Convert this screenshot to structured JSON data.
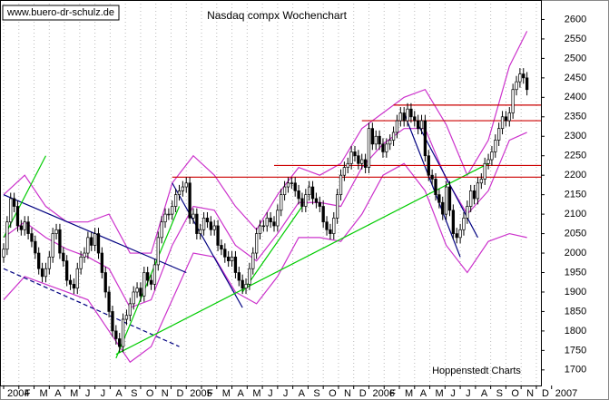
{
  "chart_data": {
    "type": "candlestick",
    "title": "Nasdaq compx Wochenchart",
    "watermark": "www.buero-dr-schulz.de",
    "source": "Hoppenstedt Charts",
    "x_labels": [
      "2004",
      "F",
      "M",
      "A",
      "M",
      "J",
      "J",
      "A",
      "S",
      "O",
      "N",
      "D",
      "2005",
      "F",
      "M",
      "A",
      "M",
      "J",
      "J",
      "A",
      "S",
      "O",
      "N",
      "D",
      "2006",
      "F",
      "M",
      "A",
      "M",
      "J",
      "J",
      "A",
      "S",
      "O",
      "N",
      "D",
      "2007"
    ],
    "ylim": [
      1660,
      2650
    ],
    "yticks": [
      1700,
      1750,
      1800,
      1850,
      1900,
      1950,
      2000,
      2050,
      2100,
      2150,
      2200,
      2250,
      2300,
      2350,
      2400,
      2450,
      2500,
      2550,
      2600
    ],
    "up_color": "#ffffff",
    "down_color": "#000000",
    "open": [
      1990,
      2010,
      2080,
      2140,
      2120,
      2070,
      2060,
      2080,
      2050,
      2030,
      2000,
      1960,
      1940,
      1960,
      1990,
      2050,
      2060,
      2000,
      1980,
      1930,
      1920,
      1910,
      1960,
      1990,
      2000,
      2040,
      2020,
      2050,
      2000,
      1950,
      1900,
      1850,
      1800,
      1780,
      1760,
      1830,
      1840,
      1870,
      1900,
      1910,
      1890,
      1950,
      1930,
      1920,
      1970,
      2040,
      2080,
      2100,
      2100,
      2120,
      2150,
      2160,
      2170,
      2180,
      2090,
      2100,
      2050,
      2060,
      2090,
      2080,
      2060,
      2070,
      2020,
      2010,
      1990,
      1980,
      1990,
      1950,
      1930,
      1910,
      1920,
      1960,
      2000,
      2050,
      2070,
      2070,
      2090,
      2080,
      2070,
      2110,
      2150,
      2170,
      2180,
      2180,
      2160,
      2140,
      2120,
      2150,
      2170,
      2140,
      2130,
      2120,
      2080,
      2060,
      2050,
      2090,
      2150,
      2200,
      2220,
      2230,
      2260,
      2250,
      2230,
      2240,
      2220,
      2320,
      2280,
      2300,
      2280,
      2260,
      2280,
      2290,
      2310,
      2340,
      2360,
      2340,
      2370,
      2350,
      2340,
      2320,
      2340,
      2250,
      2200,
      2190,
      2150,
      2130,
      2100,
      2170,
      2110,
      2050,
      2040,
      2060,
      2090,
      2120,
      2160,
      2140,
      2180,
      2190,
      2230,
      2240,
      2260,
      2290,
      2320,
      2350,
      2340,
      2360,
      2420,
      2440,
      2460,
      2450
    ],
    "high": [
      2025,
      2095,
      2155,
      2155,
      2135,
      2085,
      2095,
      2095,
      2065,
      2045,
      2015,
      1975,
      1975,
      2005,
      2065,
      2075,
      2075,
      2015,
      1995,
      1945,
      1935,
      1975,
      2005,
      2015,
      2055,
      2055,
      2065,
      2065,
      2015,
      1965,
      1915,
      1865,
      1815,
      1795,
      1845,
      1855,
      1885,
      1915,
      1925,
      1925,
      1965,
      1965,
      1945,
      1985,
      2055,
      2095,
      2115,
      2115,
      2135,
      2165,
      2175,
      2185,
      2195,
      2195,
      2115,
      2115,
      2075,
      2105,
      2105,
      2095,
      2085,
      2085,
      2035,
      2025,
      2005,
      2005,
      2005,
      1965,
      1945,
      1935,
      1975,
      2015,
      2065,
      2085,
      2085,
      2105,
      2105,
      2095,
      2125,
      2165,
      2185,
      2195,
      2195,
      2195,
      2175,
      2155,
      2165,
      2185,
      2185,
      2155,
      2145,
      2135,
      2095,
      2075,
      2105,
      2165,
      2215,
      2235,
      2245,
      2275,
      2275,
      2265,
      2255,
      2255,
      2335,
      2335,
      2315,
      2315,
      2295,
      2295,
      2305,
      2325,
      2355,
      2375,
      2375,
      2385,
      2385,
      2365,
      2355,
      2355,
      2355,
      2265,
      2215,
      2205,
      2165,
      2145,
      2185,
      2185,
      2125,
      2065,
      2075,
      2105,
      2135,
      2175,
      2175,
      2195,
      2205,
      2245,
      2255,
      2275,
      2305,
      2335,
      2365,
      2365,
      2375,
      2435,
      2455,
      2475,
      2475,
      2465
    ],
    "low": [
      1975,
      1995,
      2065,
      2105,
      2055,
      2045,
      2045,
      2035,
      2015,
      1985,
      1945,
      1925,
      1925,
      1945,
      1975,
      2035,
      1985,
      1965,
      1915,
      1905,
      1895,
      1895,
      1945,
      1975,
      1985,
      2005,
      2005,
      1985,
      1935,
      1885,
      1835,
      1785,
      1765,
      1745,
      1745,
      1815,
      1825,
      1855,
      1885,
      1875,
      1875,
      1915,
      1905,
      1905,
      1955,
      2025,
      2065,
      2085,
      2085,
      2105,
      2135,
      2145,
      2155,
      2075,
      2075,
      2035,
      2035,
      2045,
      2065,
      2045,
      2045,
      2005,
      1995,
      1975,
      1965,
      1965,
      1935,
      1915,
      1895,
      1895,
      1905,
      1945,
      1985,
      2035,
      2055,
      2055,
      2065,
      2055,
      2055,
      2095,
      2135,
      2155,
      2165,
      2145,
      2125,
      2105,
      2105,
      2135,
      2125,
      2115,
      2105,
      2065,
      2045,
      2035,
      2035,
      2075,
      2135,
      2185,
      2205,
      2215,
      2235,
      2215,
      2215,
      2205,
      2205,
      2265,
      2265,
      2265,
      2245,
      2245,
      2265,
      2275,
      2295,
      2325,
      2325,
      2325,
      2335,
      2325,
      2305,
      2305,
      2235,
      2185,
      2175,
      2135,
      2115,
      2085,
      2085,
      2095,
      2035,
      2025,
      2025,
      2045,
      2075,
      2105,
      2125,
      2125,
      2165,
      2175,
      2215,
      2225,
      2245,
      2275,
      2305,
      2325,
      2325,
      2345,
      2405,
      2425,
      2435,
      2405
    ],
    "close": [
      2010,
      2080,
      2140,
      2120,
      2070,
      2060,
      2080,
      2050,
      2030,
      2000,
      1960,
      1940,
      1960,
      1990,
      2050,
      2060,
      2000,
      1980,
      1930,
      1920,
      1910,
      1960,
      1990,
      2000,
      2040,
      2020,
      2050,
      2000,
      1950,
      1900,
      1850,
      1800,
      1780,
      1760,
      1830,
      1840,
      1870,
      1900,
      1910,
      1890,
      1950,
      1930,
      1920,
      1970,
      2040,
      2080,
      2100,
      2100,
      2120,
      2150,
      2160,
      2170,
      2180,
      2090,
      2100,
      2050,
      2060,
      2090,
      2080,
      2060,
      2070,
      2020,
      2010,
      1990,
      1980,
      1990,
      1950,
      1930,
      1910,
      1920,
      1960,
      2000,
      2050,
      2070,
      2070,
      2090,
      2080,
      2070,
      2110,
      2150,
      2170,
      2180,
      2180,
      2160,
      2140,
      2120,
      2150,
      2170,
      2140,
      2130,
      2120,
      2080,
      2060,
      2050,
      2090,
      2150,
      2200,
      2220,
      2230,
      2260,
      2250,
      2230,
      2240,
      2220,
      2320,
      2280,
      2300,
      2280,
      2260,
      2280,
      2290,
      2310,
      2340,
      2360,
      2340,
      2370,
      2350,
      2340,
      2320,
      2340,
      2250,
      2200,
      2190,
      2150,
      2130,
      2100,
      2170,
      2110,
      2050,
      2040,
      2060,
      2090,
      2120,
      2160,
      2140,
      2180,
      2190,
      2230,
      2240,
      2260,
      2290,
      2320,
      2350,
      2340,
      2360,
      2420,
      2440,
      2460,
      2450,
      2420
    ],
    "band_x": [
      0,
      6,
      12,
      18,
      24,
      30,
      36,
      42,
      48,
      54,
      60,
      66,
      72,
      78,
      84,
      90,
      96,
      102,
      108,
      114,
      120,
      126,
      132,
      138,
      144,
      149
    ],
    "bands": [
      {
        "color": "#cc33cc",
        "values": [
          2150,
          2200,
          2120,
          2080,
          2080,
          2100,
          2000,
          2000,
          2180,
          2250,
          2200,
          2120,
          2060,
          2150,
          2220,
          2200,
          2230,
          2320,
          2360,
          2400,
          2420,
          2330,
          2200,
          2290,
          2480,
          2570
        ]
      },
      {
        "color": "#cc33cc",
        "values": [
          2040,
          2080,
          2040,
          2010,
          1990,
          1960,
          1860,
          1880,
          2020,
          2120,
          2110,
          2020,
          1980,
          2050,
          2130,
          2130,
          2120,
          2220,
          2280,
          2320,
          2320,
          2190,
          2100,
          2160,
          2290,
          2310
        ]
      },
      {
        "color": "#cc33cc",
        "values": [
          1880,
          1940,
          1920,
          1900,
          1880,
          1800,
          1720,
          1760,
          1880,
          2000,
          1990,
          1900,
          1870,
          1940,
          2040,
          2040,
          2030,
          2100,
          2200,
          2230,
          2160,
          2020,
          1950,
          2030,
          2050,
          2040
        ]
      }
    ],
    "lines": [
      {
        "color": "#000080",
        "x": [
          0,
          52
        ],
        "y": [
          2150,
          1950
        ]
      },
      {
        "color": "#000080",
        "x": [
          0,
          50
        ],
        "y": [
          1960,
          1760
        ],
        "dash": true
      },
      {
        "color": "#000080",
        "x": [
          48,
          68
        ],
        "y": [
          2180,
          1860
        ]
      },
      {
        "color": "#000080",
        "x": [
          114,
          130
        ],
        "y": [
          2360,
          1990
        ]
      },
      {
        "color": "#000080",
        "x": [
          118,
          135
        ],
        "y": [
          2330,
          2040
        ]
      },
      {
        "color": "#00cc00",
        "x": [
          0,
          12
        ],
        "y": [
          2040,
          2250
        ]
      },
      {
        "color": "#00cc00",
        "x": [
          32,
          50
        ],
        "y": [
          1730,
          2120
        ]
      },
      {
        "color": "#00cc00",
        "x": [
          32,
          138
        ],
        "y": [
          1740,
          2230
        ]
      },
      {
        "color": "#00cc00",
        "x": [
          68,
          85
        ],
        "y": [
          1900,
          2120
        ]
      },
      {
        "color": "#cc0000",
        "x": [
          111,
          153
        ],
        "y": [
          2380,
          2380
        ]
      },
      {
        "color": "#cc0000",
        "x": [
          102,
          153
        ],
        "y": [
          2340,
          2340
        ]
      },
      {
        "color": "#cc0000",
        "x": [
          77,
          153
        ],
        "y": [
          2225,
          2225
        ]
      },
      {
        "color": "#cc0000",
        "x": [
          48,
          153
        ],
        "y": [
          2195,
          2195
        ]
      }
    ]
  }
}
